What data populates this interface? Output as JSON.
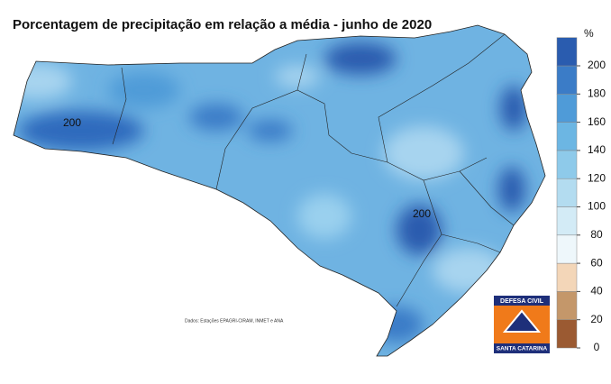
{
  "title": "Porcentagem de precipitação em relação a média - junho de 2020",
  "legend": {
    "unit": "%",
    "ticks": [
      0,
      20,
      40,
      60,
      80,
      100,
      120,
      140,
      160,
      180,
      200
    ],
    "colors": [
      "#9b5a32",
      "#c4976a",
      "#f3d6b8",
      "#eef7fb",
      "#d3ebf6",
      "#b3dcf0",
      "#8ecaea",
      "#6cb6e3",
      "#4f9bd8",
      "#3b7cc7",
      "#2a5caf"
    ]
  },
  "contour_labels": [
    "200",
    "200"
  ],
  "source": "Dados: Estações EPAGRI-CIRAM, INMET e ANA",
  "logo": {
    "top": "DEFESA CIVIL",
    "bottom": "SANTA CATARINA"
  }
}
